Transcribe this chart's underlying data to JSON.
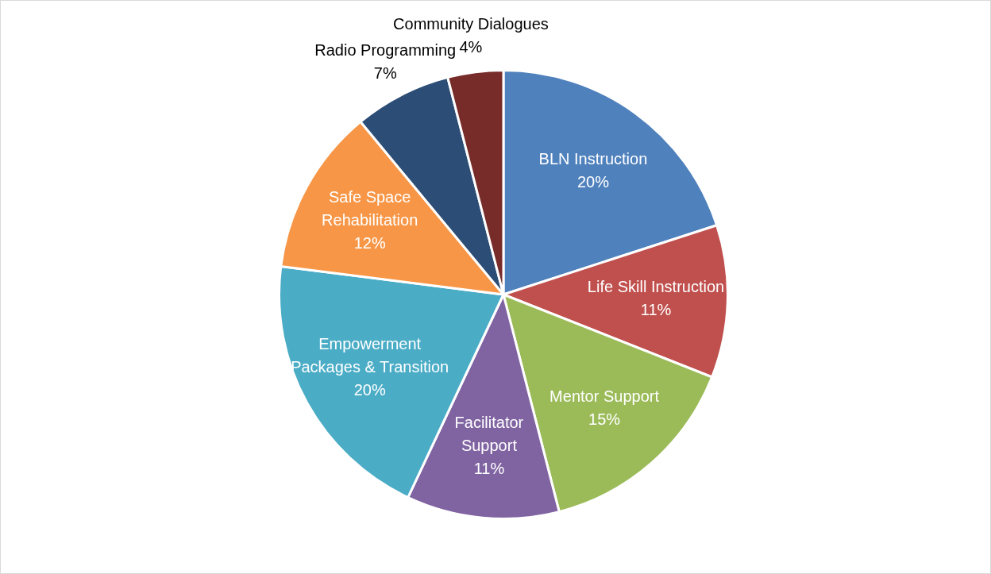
{
  "chart_data": {
    "type": "pie",
    "categories": [
      "BLN Instruction",
      "Life Skill Instruction",
      "Mentor Support",
      "Facilitator Support",
      "Empowerment Packages & Transition",
      "Safe Space Rehabilitation",
      "Radio Programming",
      "Community Dialogues"
    ],
    "values": [
      20,
      11,
      15,
      11,
      20,
      12,
      7,
      4
    ],
    "value_labels": [
      "20%",
      "11%",
      "15%",
      "11%",
      "20%",
      "12%",
      "7%",
      "4%"
    ],
    "colors": [
      "#4f81bd",
      "#c0504d",
      "#9bbb59",
      "#8064a2",
      "#4bacc6",
      "#f79646",
      "#2c4d75",
      "#772c2a"
    ]
  }
}
